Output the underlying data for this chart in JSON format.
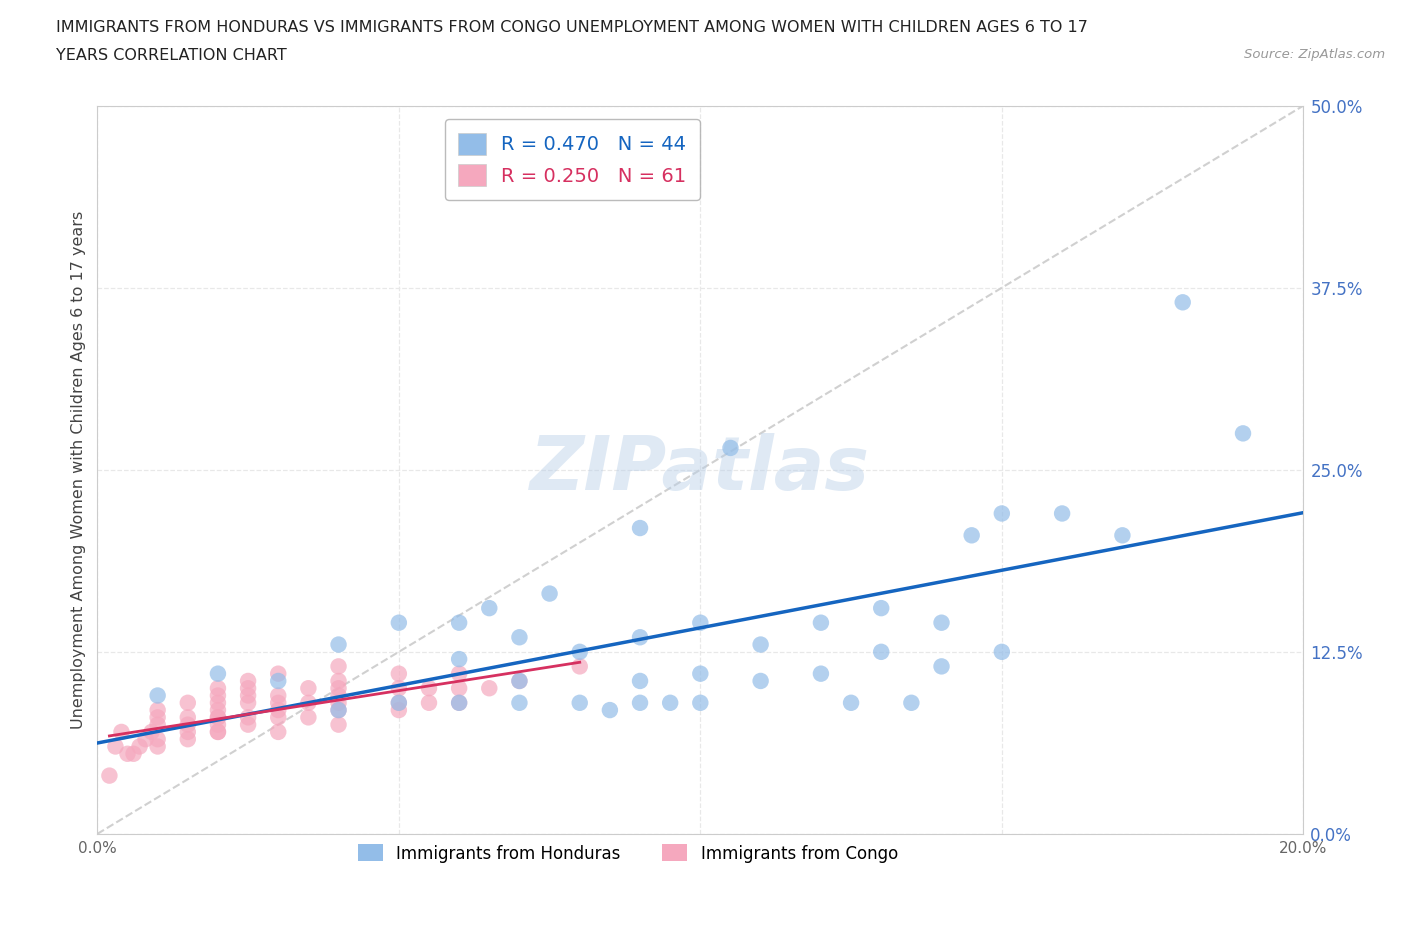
{
  "title_line1": "IMMIGRANTS FROM HONDURAS VS IMMIGRANTS FROM CONGO UNEMPLOYMENT AMONG WOMEN WITH CHILDREN AGES 6 TO 17",
  "title_line2": "YEARS CORRELATION CHART",
  "source": "Source: ZipAtlas.com",
  "ylabel": "Unemployment Among Women with Children Ages 6 to 17 years",
  "xlim": [
    0.0,
    0.2
  ],
  "ylim": [
    0.0,
    0.5
  ],
  "xticks": [
    0.0,
    0.05,
    0.1,
    0.15,
    0.2
  ],
  "xticklabels": [
    "0.0%",
    "",
    "",
    "",
    "20.0%"
  ],
  "yticks": [
    0.0,
    0.125,
    0.25,
    0.375,
    0.5
  ],
  "yticklabels": [
    "0.0%",
    "12.5%",
    "25.0%",
    "37.5%",
    "50.0%"
  ],
  "honduras_color": "#93bde8",
  "congo_color": "#f5a8be",
  "honduras_line_color": "#1565c0",
  "congo_line_color": "#d63060",
  "diagonal_color": "#d0d0d0",
  "R_honduras": 0.47,
  "N_honduras": 44,
  "R_congo": 0.25,
  "N_congo": 61,
  "honduras_x": [
    0.01,
    0.02,
    0.03,
    0.04,
    0.04,
    0.05,
    0.05,
    0.06,
    0.06,
    0.06,
    0.065,
    0.07,
    0.07,
    0.07,
    0.075,
    0.08,
    0.08,
    0.085,
    0.09,
    0.09,
    0.09,
    0.09,
    0.095,
    0.1,
    0.1,
    0.1,
    0.105,
    0.11,
    0.11,
    0.12,
    0.12,
    0.125,
    0.13,
    0.13,
    0.135,
    0.14,
    0.14,
    0.145,
    0.15,
    0.15,
    0.16,
    0.17,
    0.18,
    0.19
  ],
  "honduras_y": [
    0.095,
    0.11,
    0.105,
    0.085,
    0.13,
    0.09,
    0.145,
    0.09,
    0.12,
    0.145,
    0.155,
    0.09,
    0.105,
    0.135,
    0.165,
    0.09,
    0.125,
    0.085,
    0.09,
    0.105,
    0.135,
    0.21,
    0.09,
    0.09,
    0.11,
    0.145,
    0.265,
    0.105,
    0.13,
    0.11,
    0.145,
    0.09,
    0.125,
    0.155,
    0.09,
    0.115,
    0.145,
    0.205,
    0.125,
    0.22,
    0.22,
    0.205,
    0.365,
    0.275
  ],
  "congo_x": [
    0.002,
    0.003,
    0.004,
    0.005,
    0.006,
    0.007,
    0.008,
    0.009,
    0.01,
    0.01,
    0.01,
    0.01,
    0.01,
    0.015,
    0.015,
    0.015,
    0.015,
    0.015,
    0.02,
    0.02,
    0.02,
    0.02,
    0.02,
    0.02,
    0.02,
    0.02,
    0.02,
    0.025,
    0.025,
    0.025,
    0.025,
    0.025,
    0.025,
    0.03,
    0.03,
    0.03,
    0.03,
    0.03,
    0.03,
    0.035,
    0.035,
    0.035,
    0.04,
    0.04,
    0.04,
    0.04,
    0.04,
    0.04,
    0.04,
    0.05,
    0.05,
    0.05,
    0.05,
    0.055,
    0.055,
    0.06,
    0.06,
    0.06,
    0.065,
    0.07,
    0.08
  ],
  "congo_y": [
    0.04,
    0.06,
    0.07,
    0.055,
    0.055,
    0.06,
    0.065,
    0.07,
    0.06,
    0.065,
    0.075,
    0.08,
    0.085,
    0.065,
    0.07,
    0.075,
    0.08,
    0.09,
    0.07,
    0.07,
    0.075,
    0.08,
    0.08,
    0.085,
    0.09,
    0.095,
    0.1,
    0.075,
    0.08,
    0.09,
    0.095,
    0.1,
    0.105,
    0.07,
    0.08,
    0.085,
    0.09,
    0.095,
    0.11,
    0.08,
    0.09,
    0.1,
    0.075,
    0.085,
    0.09,
    0.095,
    0.1,
    0.105,
    0.115,
    0.085,
    0.09,
    0.1,
    0.11,
    0.09,
    0.1,
    0.09,
    0.1,
    0.11,
    0.1,
    0.105,
    0.115
  ],
  "watermark_text": "ZIPatlas",
  "background_color": "#ffffff",
  "grid_color": "#e8e8e8",
  "ytick_color": "#4472c4",
  "xtick_color": "#666666",
  "ylabel_color": "#444444"
}
